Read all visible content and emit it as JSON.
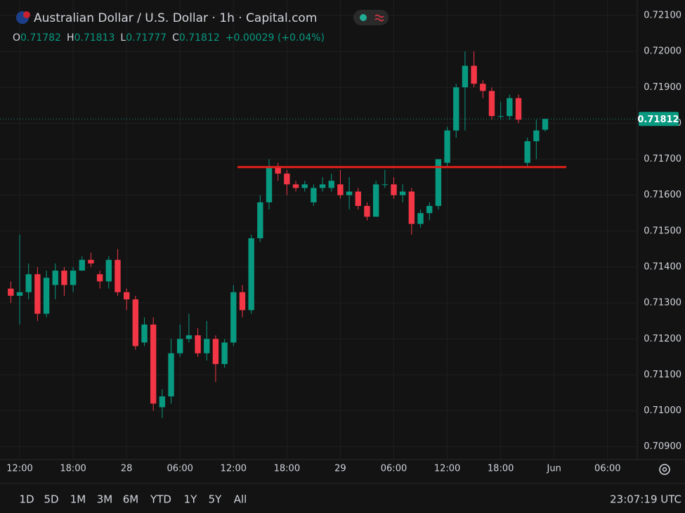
{
  "chart_data": {
    "type": "candlestick",
    "title": "Australian Dollar / U.S. Dollar · 1h · Capital.com",
    "ohlc_labels": [
      "O",
      "H",
      "L",
      "C"
    ],
    "change": "+0.00029 (+0.04%)",
    "up_color": "#089981",
    "down_color": "#f23645",
    "x": [
      -1,
      0,
      1,
      2,
      3,
      4,
      5,
      6,
      7,
      8,
      9,
      10,
      11,
      12,
      13,
      14,
      15,
      16,
      17,
      18,
      19,
      20,
      21,
      22,
      23,
      24,
      25,
      26,
      27,
      28,
      29,
      30,
      31,
      32,
      33,
      34,
      35,
      36,
      37,
      38,
      39,
      40,
      41,
      42,
      43,
      44,
      45,
      46,
      47,
      48,
      49,
      50,
      51,
      52,
      53,
      54,
      55,
      56,
      57,
      58,
      59
    ],
    "open": [
      0.7134,
      0.7132,
      0.7133,
      0.7138,
      0.7127,
      0.7135,
      0.7139,
      0.7135,
      0.7139,
      0.7142,
      0.7138,
      0.7136,
      0.7142,
      0.7133,
      0.7131,
      0.7119,
      0.7124,
      0.7101,
      0.7104,
      0.7116,
      0.712,
      0.7121,
      0.7116,
      0.712,
      0.7113,
      0.7119,
      0.7133,
      0.7128,
      0.7148,
      0.7158,
      0.7168,
      0.7166,
      0.7163,
      0.7162,
      0.7158,
      0.7162,
      0.7162,
      0.7163,
      0.716,
      0.7161,
      0.7157,
      0.7154,
      0.7163,
      0.7163,
      0.716,
      0.7161,
      0.7152,
      0.7155,
      0.7157,
      0.7169,
      0.7178,
      0.719,
      0.7196,
      0.7191,
      0.7189,
      0.7182,
      0.7182,
      0.7187,
      0.7169,
      0.7175,
      0.71782
    ],
    "high": [
      0.7136,
      0.7149,
      0.7141,
      0.714,
      0.7139,
      0.7141,
      0.714,
      0.714,
      0.7143,
      0.7144,
      0.7139,
      0.7143,
      0.7145,
      0.7134,
      0.7132,
      0.7126,
      0.7126,
      0.7106,
      0.712,
      0.7124,
      0.7127,
      0.7123,
      0.7125,
      0.7121,
      0.712,
      0.7135,
      0.7135,
      0.7149,
      0.716,
      0.717,
      0.7169,
      0.7167,
      0.7164,
      0.7164,
      0.7163,
      0.7165,
      0.7166,
      0.7167,
      0.7165,
      0.7162,
      0.7158,
      0.7164,
      0.7167,
      0.7165,
      0.7163,
      0.7162,
      0.7156,
      0.7158,
      0.717,
      0.7179,
      0.7191,
      0.72,
      0.72,
      0.7192,
      0.719,
      0.7186,
      0.7188,
      0.7188,
      0.7176,
      0.7181,
      0.71813
    ],
    "low": [
      0.713,
      0.7124,
      0.7131,
      0.7125,
      0.7126,
      0.7131,
      0.7132,
      0.7133,
      0.7139,
      0.714,
      0.7134,
      0.7134,
      0.7132,
      0.7128,
      0.7117,
      0.7118,
      0.71,
      0.7098,
      0.7102,
      0.7115,
      0.7119,
      0.7115,
      0.7114,
      0.7108,
      0.7112,
      0.7118,
      0.7126,
      0.7127,
      0.7147,
      0.7156,
      0.7164,
      0.716,
      0.7161,
      0.7161,
      0.7157,
      0.7161,
      0.7161,
      0.7159,
      0.7156,
      0.7156,
      0.7153,
      0.7154,
      0.7162,
      0.7159,
      0.7158,
      0.7149,
      0.7151,
      0.7153,
      0.7156,
      0.7168,
      0.7176,
      0.7178,
      0.719,
      0.7187,
      0.7181,
      0.7181,
      0.7181,
      0.718,
      0.7168,
      0.717,
      0.71777
    ],
    "close": [
      0.7132,
      0.7133,
      0.7138,
      0.7127,
      0.7137,
      0.7139,
      0.7135,
      0.7139,
      0.7142,
      0.7141,
      0.7136,
      0.7142,
      0.7133,
      0.7131,
      0.7118,
      0.7124,
      0.7102,
      0.7104,
      0.7116,
      0.712,
      0.7121,
      0.7116,
      0.712,
      0.7113,
      0.7119,
      0.7133,
      0.7128,
      0.7148,
      0.7158,
      0.7168,
      0.7166,
      0.7163,
      0.7162,
      0.7163,
      0.7162,
      0.7163,
      0.7164,
      0.716,
      0.7161,
      0.7157,
      0.7154,
      0.7163,
      0.7163,
      0.716,
      0.7161,
      0.7152,
      0.7155,
      0.7157,
      0.717,
      0.7178,
      0.719,
      0.7196,
      0.7191,
      0.7189,
      0.7182,
      0.7182,
      0.7187,
      0.7181,
      0.7175,
      0.7178,
      0.71812
    ],
    "xlim": [
      -2.21,
      69.33
    ],
    "xticks": [
      {
        "value": 0,
        "label": "12:00"
      },
      {
        "value": 6,
        "label": "18:00"
      },
      {
        "value": 12,
        "label": "28"
      },
      {
        "value": 18,
        "label": "06:00"
      },
      {
        "value": 24,
        "label": "12:00"
      },
      {
        "value": 30,
        "label": "18:00"
      },
      {
        "value": 36,
        "label": "29"
      },
      {
        "value": 42,
        "label": "06:00"
      },
      {
        "value": 48,
        "label": "12:00"
      },
      {
        "value": 54,
        "label": "18:00"
      },
      {
        "value": 60,
        "label": "Jun"
      },
      {
        "value": 66,
        "label": "06:00"
      }
    ],
    "ylim": [
      0.70872,
      0.72143
    ],
    "yticks": [
      {
        "value": 0.709,
        "label": "0.70900"
      },
      {
        "value": 0.71,
        "label": "0.71000"
      },
      {
        "value": 0.711,
        "label": "0.71100"
      },
      {
        "value": 0.712,
        "label": "0.71200"
      },
      {
        "value": 0.713,
        "label": "0.71300"
      },
      {
        "value": 0.714,
        "label": "0.71400"
      },
      {
        "value": 0.715,
        "label": "0.71500"
      },
      {
        "value": 0.716,
        "label": "0.71600"
      },
      {
        "value": 0.717,
        "label": "0.71700"
      },
      {
        "value": 0.718,
        "label": "0.71800"
      },
      {
        "value": 0.719,
        "label": "0.71900"
      },
      {
        "value": 0.72,
        "label": "0.72000"
      },
      {
        "value": 0.721,
        "label": "0.72100"
      }
    ],
    "grid": true,
    "level_line": {
      "value": 0.71678,
      "color": "#e0201b"
    }
  },
  "toolbar": {
    "ranges": [
      "1D",
      "5D",
      "1M",
      "3M",
      "6M",
      "YTD",
      "1Y",
      "5Y",
      "All"
    ],
    "clock": "23:07:19 UTC"
  }
}
